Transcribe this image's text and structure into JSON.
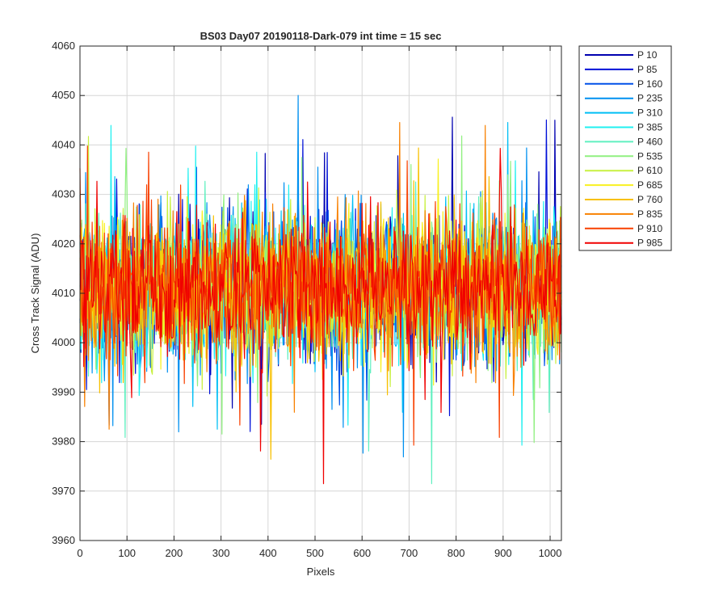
{
  "chart_data": {
    "type": "line",
    "title": "BS03 Day07 20190118-Dark-079 int time = 15 sec",
    "xlabel": "Pixels",
    "ylabel": "Cross Track Signal (ADU)",
    "xlim": [
      0,
      1024
    ],
    "ylim": [
      3960,
      4060
    ],
    "xticks": [
      0,
      100,
      200,
      300,
      400,
      500,
      600,
      700,
      800,
      900,
      1000
    ],
    "yticks": [
      3960,
      3970,
      3980,
      3990,
      4000,
      4010,
      4020,
      4030,
      4040,
      4050,
      4060
    ],
    "grid": true,
    "legend_position": "outside-top-right",
    "series_mean": 4011,
    "series_spread": 8,
    "series": [
      {
        "name": "P 10",
        "color": "#0000b0"
      },
      {
        "name": "P 85",
        "color": "#0010d8"
      },
      {
        "name": "P 160",
        "color": "#0050e8"
      },
      {
        "name": "P 235",
        "color": "#0090f0"
      },
      {
        "name": "P 310",
        "color": "#00bff5"
      },
      {
        "name": "P 385",
        "color": "#20f0f0"
      },
      {
        "name": "P 460",
        "color": "#60f0c0"
      },
      {
        "name": "P 535",
        "color": "#90f080"
      },
      {
        "name": "P 610",
        "color": "#c8f040"
      },
      {
        "name": "P 685",
        "color": "#f8f020"
      },
      {
        "name": "P 760",
        "color": "#f8c000"
      },
      {
        "name": "P 835",
        "color": "#f88000"
      },
      {
        "name": "P 910",
        "color": "#f84000"
      },
      {
        "name": "P 985",
        "color": "#f00000"
      }
    ]
  }
}
